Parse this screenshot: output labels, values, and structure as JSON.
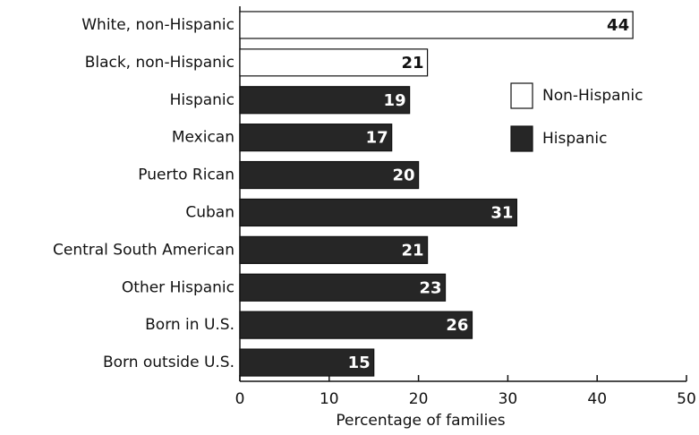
{
  "chart_data": {
    "type": "hbar",
    "categories": [
      "White, non-Hispanic",
      "Black, non-Hispanic",
      "Hispanic",
      "Mexican",
      "Puerto Rican",
      "Cuban",
      "Central South American",
      "Other Hispanic",
      "Born in U.S.",
      "Born outside U.S."
    ],
    "series": [
      {
        "name": "Non-Hispanic",
        "color": "#ffffff",
        "values": [
          44,
          21,
          null,
          null,
          null,
          null,
          null,
          null,
          null,
          null
        ]
      },
      {
        "name": "Hispanic",
        "color": "#262626",
        "values": [
          null,
          null,
          19,
          17,
          20,
          31,
          21,
          23,
          26,
          15
        ]
      }
    ],
    "xlabel": "Percentage of families",
    "xlim": [
      0,
      50
    ],
    "xticks": [
      0,
      10,
      20,
      30,
      40,
      50
    ]
  }
}
